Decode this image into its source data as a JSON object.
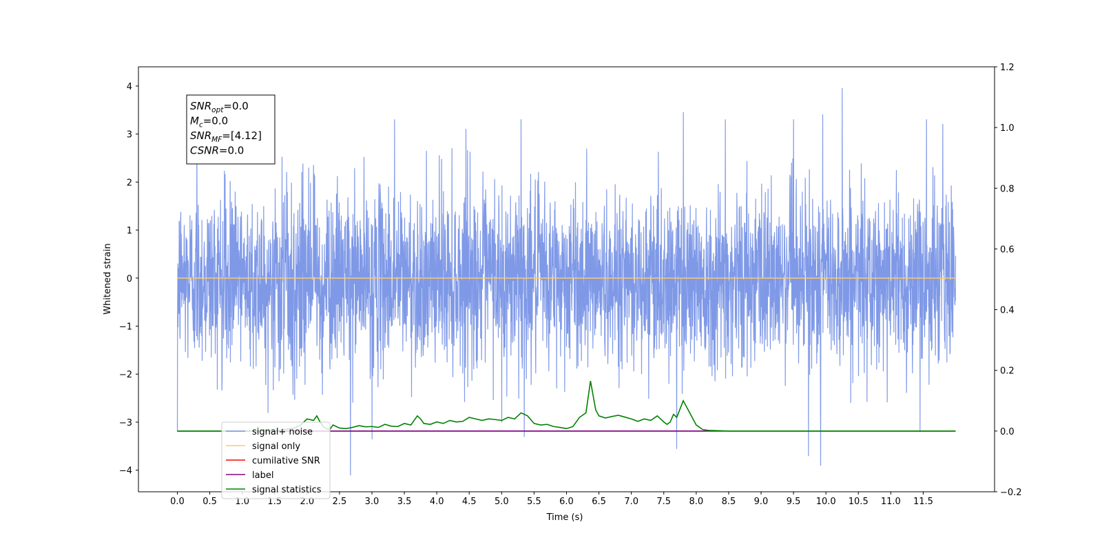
{
  "chart_data": {
    "type": "line",
    "title": "",
    "xlabel": "Time (s)",
    "ylabel": "Whitened strain",
    "xlim": [
      -0.6,
      12.6
    ],
    "ylim": [
      -4.45,
      4.4
    ],
    "y2lim": [
      -0.2,
      1.2
    ],
    "x_ticks": [
      0.0,
      0.5,
      1.0,
      1.5,
      2.0,
      2.5,
      3.0,
      3.5,
      4.0,
      4.5,
      5.0,
      5.5,
      6.0,
      6.5,
      7.0,
      7.5,
      8.0,
      8.5,
      9.0,
      9.5,
      10.0,
      10.5,
      11.0,
      11.5
    ],
    "x_tick_labels": [
      "0.0",
      "0.5",
      "1.0",
      "1.5",
      "2.0",
      "2.5",
      "3.0",
      "3.5",
      "4.0",
      "4.5",
      "5.0",
      "5.5",
      "6.0",
      "6.5",
      "7.0",
      "7.5",
      "8.0",
      "8.5",
      "9.0",
      "9.5",
      "10.0",
      "10.5",
      "11.0",
      "11.5"
    ],
    "y_ticks": [
      -4,
      -3,
      -2,
      -1,
      0,
      1,
      2,
      3,
      4
    ],
    "y_tick_labels": [
      "−4",
      "−3",
      "−2",
      "−1",
      "0",
      "1",
      "2",
      "3",
      "4"
    ],
    "y2_ticks": [
      -0.2,
      0.0,
      0.2,
      0.4,
      0.6,
      0.8,
      1.0,
      1.2
    ],
    "y2_tick_labels": [
      "−0.2",
      "0.0",
      "0.2",
      "0.4",
      "0.6",
      "0.8",
      "1.0",
      "1.2"
    ],
    "legend_position": "lower-left",
    "grid": false,
    "annotation": {
      "lines": [
        {
          "name": "SNR",
          "sub": "opt",
          "value": "=0.0"
        },
        {
          "name": "M",
          "sub": "c",
          "value": "=0.0"
        },
        {
          "name": "SNR",
          "sub": "MF",
          "value": "=[4.12]"
        },
        {
          "name": "CSNR",
          "sub": "",
          "value": "=0.0"
        }
      ]
    },
    "series": [
      {
        "name": "signal+ noise",
        "color": "#7893e6",
        "axis": "left",
        "kind": "noise",
        "x_range": [
          0.0,
          12.0
        ],
        "amplitude_sigma": 0.9,
        "spikes": [
          {
            "x": 0.0,
            "y": -3.2
          },
          {
            "x": 0.3,
            "y": 2.9
          },
          {
            "x": 1.4,
            "y": -2.8
          },
          {
            "x": 2.67,
            "y": -4.1
          },
          {
            "x": 3.0,
            "y": -3.35
          },
          {
            "x": 3.35,
            "y": 3.3
          },
          {
            "x": 4.45,
            "y": 3.1
          },
          {
            "x": 5.0,
            "y": -3.0
          },
          {
            "x": 5.3,
            "y": 3.3
          },
          {
            "x": 5.35,
            "y": -3.3
          },
          {
            "x": 7.7,
            "y": -3.55
          },
          {
            "x": 7.8,
            "y": 3.45
          },
          {
            "x": 8.45,
            "y": 3.3
          },
          {
            "x": 9.5,
            "y": 3.3
          },
          {
            "x": 9.73,
            "y": -3.7
          },
          {
            "x": 9.95,
            "y": 3.4
          },
          {
            "x": 9.92,
            "y": -3.9
          },
          {
            "x": 10.25,
            "y": 3.95
          },
          {
            "x": 11.45,
            "y": -3.2
          },
          {
            "x": 11.55,
            "y": 3.3
          },
          {
            "x": 11.8,
            "y": 3.2
          }
        ]
      },
      {
        "name": "signal only",
        "color": "#ffc966",
        "axis": "left",
        "x": [
          0.0,
          12.0
        ],
        "y": [
          0.0,
          0.0
        ]
      },
      {
        "name": "cumilative SNR",
        "color": "#ff0000",
        "axis": "right",
        "x": [
          0.0,
          12.0
        ],
        "y": [
          0.0,
          0.0
        ]
      },
      {
        "name": "label",
        "color": "#800080",
        "axis": "right",
        "x": [
          0.0,
          12.0
        ],
        "y": [
          0.0,
          0.0
        ]
      },
      {
        "name": "signal statistics",
        "color": "#008000",
        "axis": "right",
        "x": [
          0.0,
          1.5,
          1.8,
          1.9,
          2.0,
          2.1,
          2.15,
          2.2,
          2.25,
          2.3,
          2.35,
          2.4,
          2.5,
          2.6,
          2.7,
          2.8,
          2.9,
          3.0,
          3.1,
          3.2,
          3.3,
          3.4,
          3.5,
          3.6,
          3.7,
          3.75,
          3.8,
          3.9,
          4.0,
          4.1,
          4.2,
          4.3,
          4.4,
          4.5,
          4.6,
          4.7,
          4.8,
          4.9,
          5.0,
          5.1,
          5.2,
          5.3,
          5.4,
          5.5,
          5.6,
          5.7,
          5.8,
          5.9,
          6.0,
          6.1,
          6.2,
          6.3,
          6.37,
          6.45,
          6.5,
          6.6,
          6.7,
          6.8,
          6.9,
          7.0,
          7.1,
          7.2,
          7.3,
          7.4,
          7.5,
          7.55,
          7.6,
          7.65,
          7.7,
          7.8,
          7.9,
          8.0,
          8.1,
          8.2,
          8.5,
          12.0
        ],
        "y": [
          0.0,
          0.0,
          0.01,
          0.02,
          0.04,
          0.035,
          0.05,
          0.03,
          0.015,
          0.008,
          0.005,
          0.02,
          0.01,
          0.008,
          0.012,
          0.018,
          0.014,
          0.015,
          0.012,
          0.022,
          0.016,
          0.015,
          0.025,
          0.02,
          0.05,
          0.04,
          0.025,
          0.022,
          0.03,
          0.025,
          0.035,
          0.03,
          0.032,
          0.045,
          0.04,
          0.035,
          0.04,
          0.038,
          0.035,
          0.045,
          0.04,
          0.06,
          0.05,
          0.025,
          0.02,
          0.022,
          0.015,
          0.012,
          0.008,
          0.015,
          0.045,
          0.06,
          0.165,
          0.07,
          0.05,
          0.043,
          0.048,
          0.052,
          0.046,
          0.04,
          0.032,
          0.04,
          0.035,
          0.05,
          0.03,
          0.022,
          0.03,
          0.055,
          0.045,
          0.1,
          0.06,
          0.02,
          0.005,
          0.002,
          0.0,
          0.0
        ]
      }
    ]
  }
}
